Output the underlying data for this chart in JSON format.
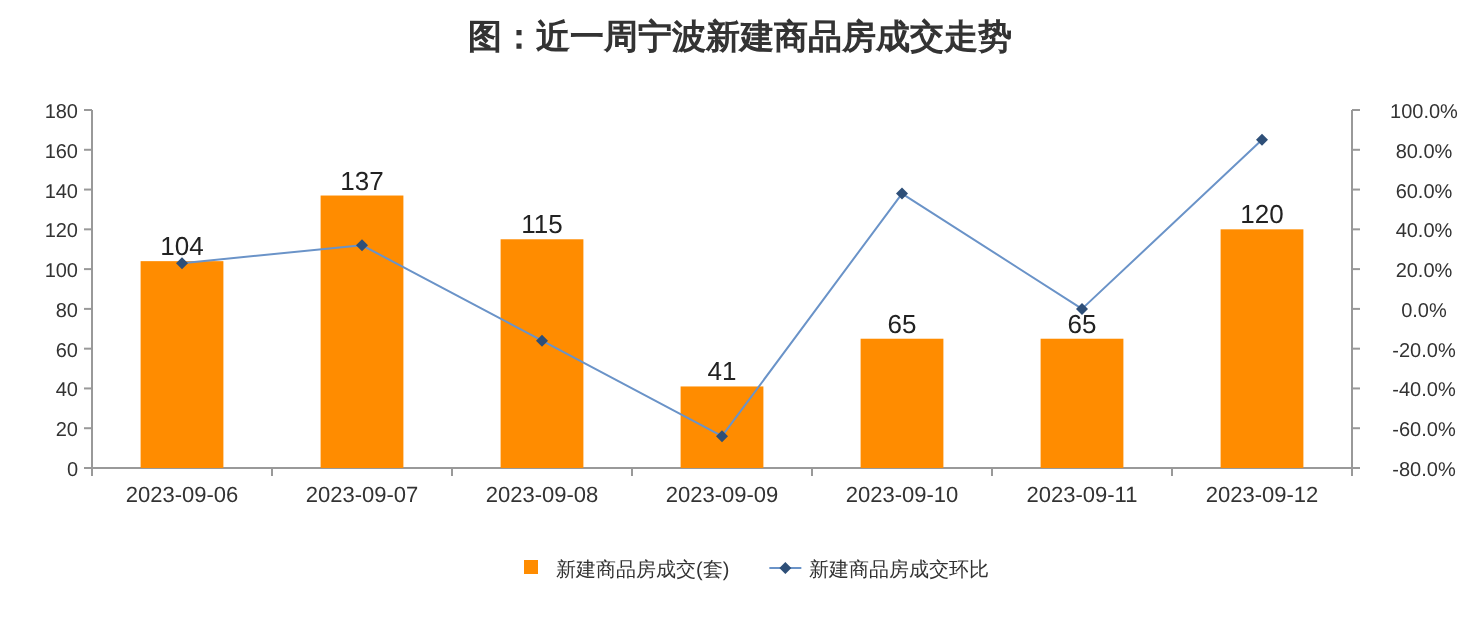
{
  "chart_data": {
    "type": "bar",
    "title": "图：近一周宁波新建商品房成交走势",
    "categories": [
      "2023-09-06",
      "2023-09-07",
      "2023-09-08",
      "2023-09-09",
      "2023-09-10",
      "2023-09-11",
      "2023-09-12"
    ],
    "series": [
      {
        "name": "新建商品房成交(套)",
        "color": "#ff8c00",
        "values": [
          104,
          137,
          115,
          41,
          65,
          65,
          120
        ],
        "value_labels": [
          "104",
          "137",
          "115",
          "41",
          "65",
          "65",
          "120"
        ]
      },
      {
        "name": "新建商品房成交环比",
        "type": "line",
        "axis": "y2",
        "color": "#6a93c8",
        "marker": "diamond",
        "values": [
          23,
          32,
          -16,
          -64,
          58,
          0,
          85
        ]
      }
    ],
    "ylim": [
      0,
      180
    ],
    "yticks": [
      0,
      20,
      40,
      60,
      80,
      100,
      120,
      140,
      160,
      180
    ],
    "y2lim": [
      -80,
      100
    ],
    "y2ticks": [
      {
        "value": -80,
        "label": "-80.0%"
      },
      {
        "value": -60,
        "label": "-60.0%"
      },
      {
        "value": -40,
        "label": "-40.0%"
      },
      {
        "value": -20,
        "label": "-20.0%"
      },
      {
        "value": 0,
        "label": "0.0%"
      },
      {
        "value": 20,
        "label": "20.0%"
      },
      {
        "value": 40,
        "label": "40.0%"
      },
      {
        "value": 60,
        "label": "60.0%"
      },
      {
        "value": 80,
        "label": "80.0%"
      },
      {
        "value": 100,
        "label": "100.0%"
      }
    ],
    "grid": false,
    "legend": "bottom"
  }
}
